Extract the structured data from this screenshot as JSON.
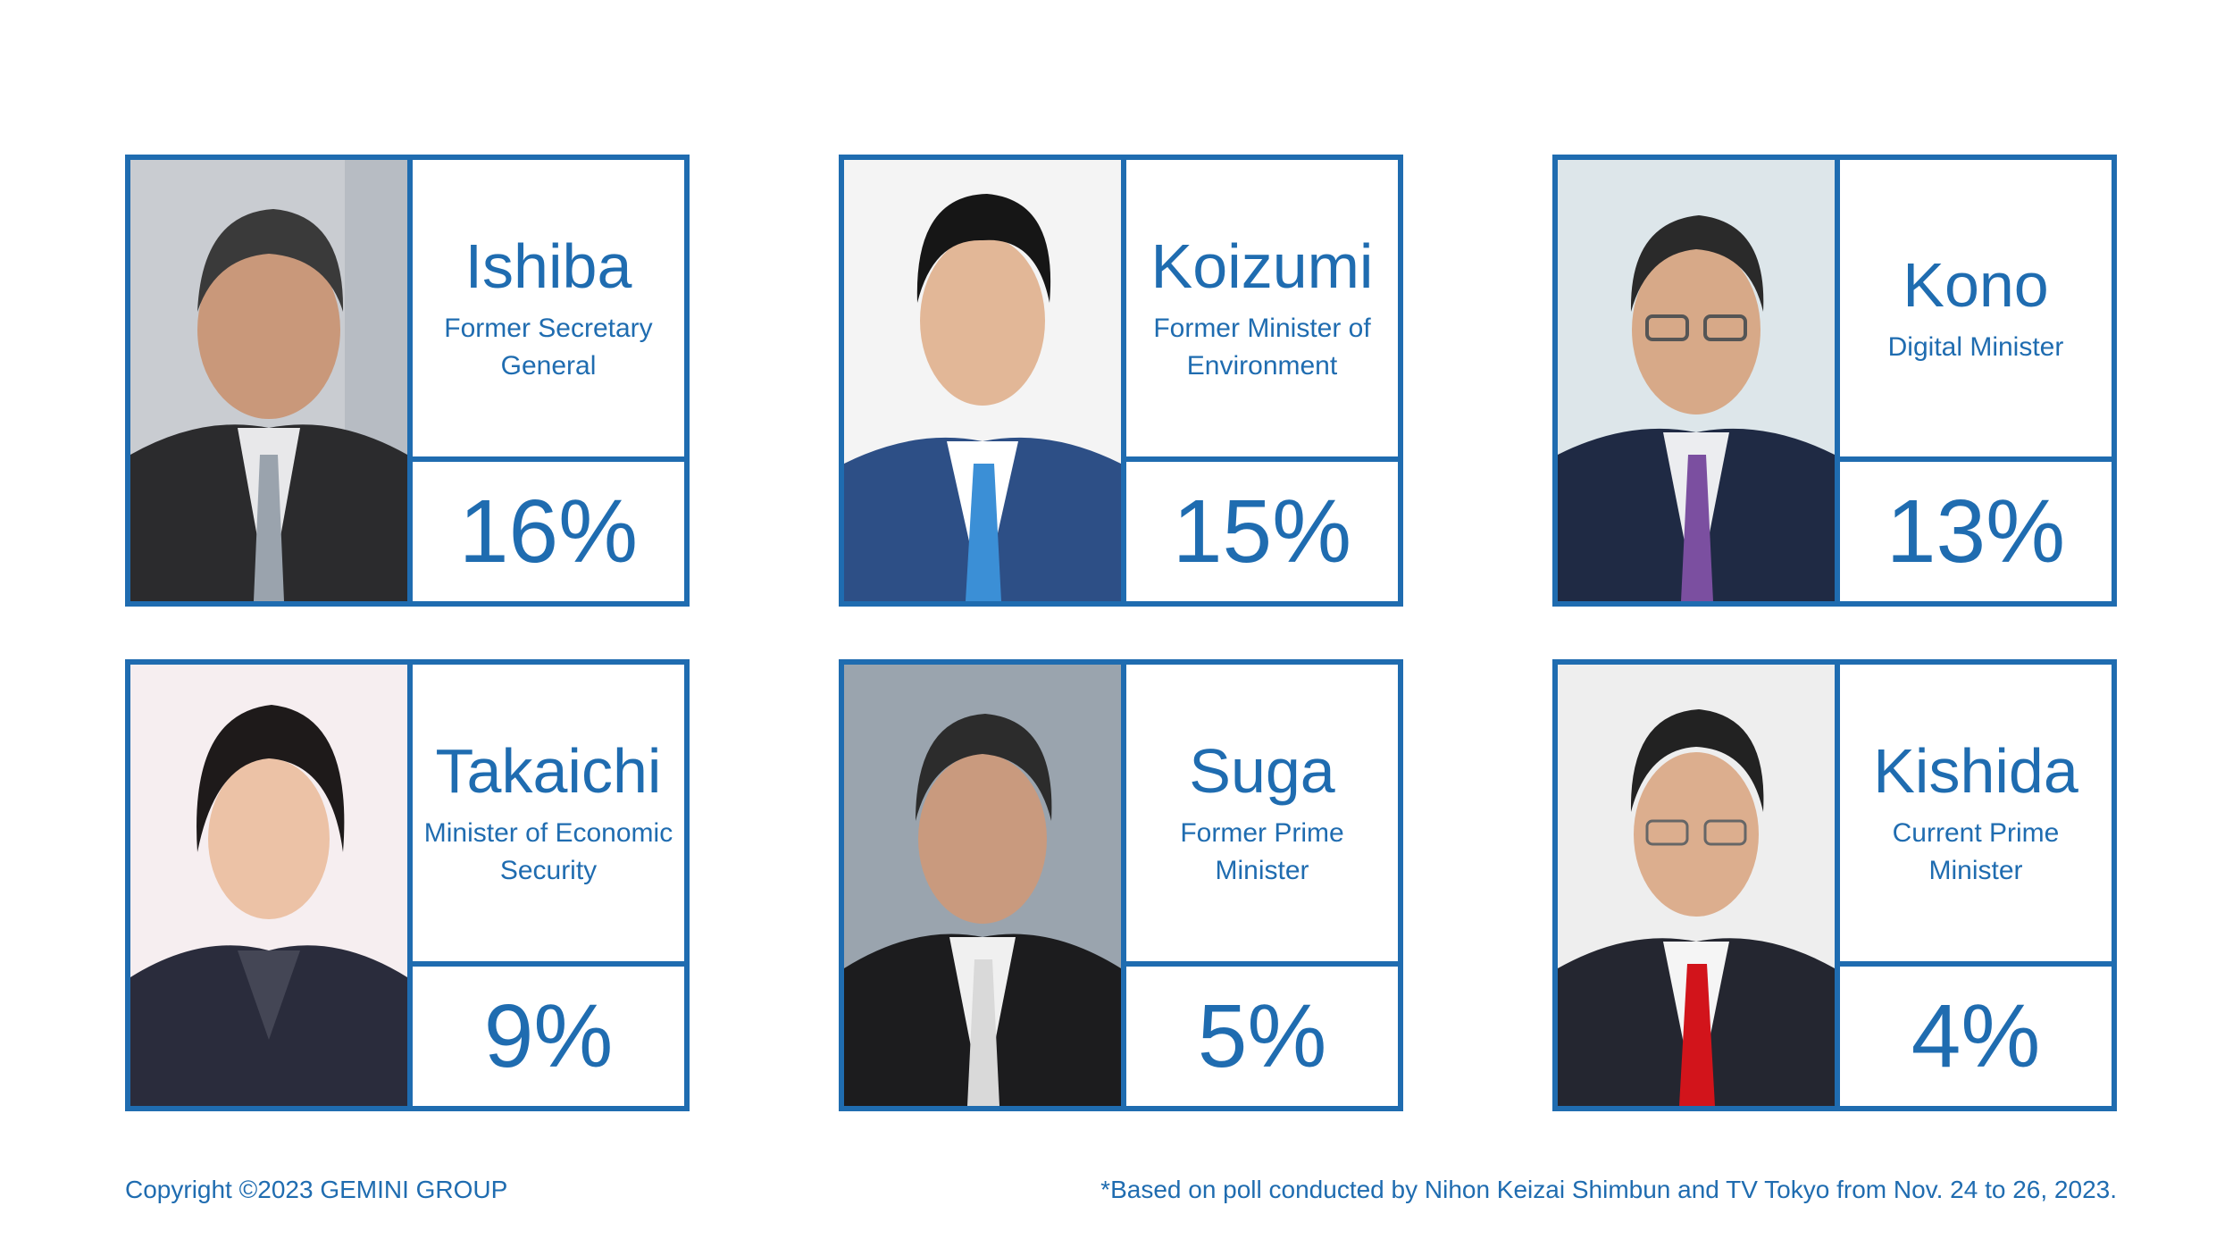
{
  "colors": {
    "accent": "#1f6cb0",
    "background": "#ffffff"
  },
  "candidates": [
    {
      "name": "Ishiba",
      "role": "Former Secretary General",
      "percent": "16%"
    },
    {
      "name": "Koizumi",
      "role": "Former Minister of Environment",
      "percent": "15%"
    },
    {
      "name": "Kono",
      "role": "Digital Minister",
      "percent": "13%"
    },
    {
      "name": "Takaichi",
      "role": "Minister of Economic Security",
      "percent": "9%"
    },
    {
      "name": "Suga",
      "role": "Former Prime Minister",
      "percent": "5%"
    },
    {
      "name": "Kishida",
      "role": "Current Prime Minister",
      "percent": "4%"
    }
  ],
  "footer": {
    "copyright": "Copyright ©2023 GEMINI GROUP",
    "source_note": "*Based on poll conducted by Nihon Keizai Shimbun and TV Tokyo from Nov. 24 to 26, 2023."
  }
}
